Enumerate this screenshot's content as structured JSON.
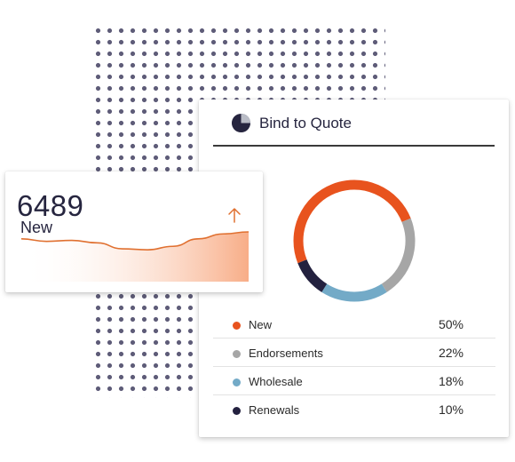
{
  "new_card": {
    "value": "6489",
    "label": "New",
    "trend_icon": "arrow-up-icon"
  },
  "quote_card": {
    "title": "Bind to Quote",
    "icon": "pie-chart-icon",
    "legend": [
      {
        "label": "New",
        "value": "50%",
        "color": "#e8531e"
      },
      {
        "label": "Endorsements",
        "value": "22%",
        "color": "#a6a6a6"
      },
      {
        "label": "Wholesale",
        "value": "18%",
        "color": "#73aac7"
      },
      {
        "label": "Renewals",
        "value": "10%",
        "color": "#23213f"
      }
    ]
  },
  "chart_data": [
    {
      "type": "pie",
      "categories": [
        "New",
        "Endorsements",
        "Wholesale",
        "Renewals"
      ],
      "values": [
        50,
        22,
        18,
        10
      ],
      "colors": [
        "#e8531e",
        "#a6a6a6",
        "#73aac7",
        "#23213f"
      ],
      "title": "Bind to Quote"
    },
    {
      "type": "area",
      "values": [
        0.72,
        0.62,
        0.66,
        0.56,
        0.32,
        0.28,
        0.42,
        0.72,
        0.92,
        1.0
      ],
      "color": "#e07030"
    }
  ],
  "colors": {
    "accent": "#e8531e",
    "dark": "#26253f"
  }
}
